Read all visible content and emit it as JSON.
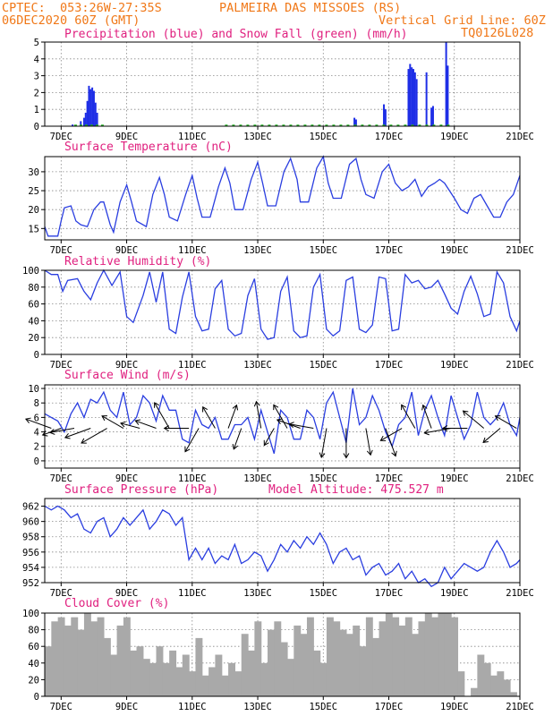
{
  "header": {
    "line1_left": "CPTEC:  053:26W-27:35S",
    "line1_right": "PALMEIRA DAS MISSOES (RS)",
    "line2_left": "06DEC2020 60Z (GMT)",
    "line2_right": "Vertical Grid Line: 60Z",
    "line3_right": "TQ0126L028"
  },
  "colors": {
    "header": "#f07818",
    "title": "#e0207f",
    "line": "#2a3ee0",
    "precip": "#1e2ee6",
    "snow": "#20b020",
    "cloud": "#a9a9a9",
    "arrow": "#000000"
  },
  "x_axis": {
    "labels": [
      "7DEC",
      "9DEC",
      "11DEC",
      "13DEC",
      "15DEC",
      "17DEC",
      "19DEC",
      "21DEC"
    ],
    "days": [
      7,
      9,
      11,
      13,
      15,
      17,
      19,
      21
    ],
    "start_day": 6.5,
    "end_day": 21
  },
  "chart_data": [
    {
      "type": "bar",
      "name": "precipitation",
      "title": "Precipitation (blue) and Snow Fall (green) (mm/h)",
      "ylim": [
        0,
        5
      ],
      "yticks": [
        0,
        1,
        2,
        3,
        4,
        5
      ],
      "x": [
        7.35,
        7.6,
        7.7,
        7.75,
        7.8,
        7.85,
        7.9,
        7.95,
        8.0,
        8.05,
        8.1,
        15.95,
        16.0,
        16.85,
        16.9,
        17.6,
        17.65,
        17.7,
        17.75,
        17.8,
        17.85,
        18.15,
        18.3,
        18.35,
        18.75,
        18.8
      ],
      "values": [
        0.1,
        0.3,
        0.5,
        0.8,
        1.5,
        2.4,
        2.2,
        2.3,
        2.1,
        1.4,
        0.8,
        0.5,
        0.4,
        1.3,
        1.0,
        3.4,
        3.7,
        3.5,
        3.4,
        3.2,
        2.8,
        3.2,
        1.1,
        1.2,
        5.0,
        3.6
      ],
      "snow": []
    },
    {
      "type": "line",
      "name": "temperature",
      "title": "Surface Temperature (nC)",
      "ylim": [
        12,
        34
      ],
      "yticks": [
        15,
        20,
        25,
        30
      ],
      "x": [
        6.5,
        6.6,
        6.8,
        6.9,
        7.0,
        7.1,
        7.3,
        7.45,
        7.6,
        7.8,
        8.0,
        8.2,
        8.3,
        8.5,
        8.6,
        8.8,
        9.0,
        9.15,
        9.3,
        9.6,
        9.8,
        10.0,
        10.15,
        10.3,
        10.55,
        10.8,
        11.0,
        11.15,
        11.3,
        11.55,
        11.8,
        12.0,
        12.15,
        12.3,
        12.55,
        12.8,
        13.0,
        13.15,
        13.3,
        13.55,
        13.8,
        14.0,
        14.2,
        14.3,
        14.55,
        14.8,
        15.0,
        15.15,
        15.3,
        15.55,
        15.8,
        16.0,
        16.15,
        16.3,
        16.55,
        16.8,
        17.0,
        17.2,
        17.4,
        17.6,
        17.8,
        18.0,
        18.2,
        18.4,
        18.55,
        18.7,
        19.0,
        19.2,
        19.4,
        19.6,
        19.8,
        20.0,
        20.2,
        20.4,
        20.6,
        20.8,
        21.0
      ],
      "values": [
        15.5,
        13,
        13,
        13,
        17,
        20.5,
        21,
        17,
        16,
        15.5,
        20,
        22,
        22,
        16,
        14,
        22,
        26.5,
        22,
        17,
        15.5,
        24,
        28.5,
        24,
        18,
        17,
        24,
        29,
        23,
        18,
        18,
        26,
        31,
        27,
        20,
        20,
        28,
        32.5,
        27,
        21,
        21,
        30,
        33.5,
        28,
        22,
        22,
        31,
        34,
        27,
        23,
        23,
        32,
        33.5,
        28,
        24,
        23,
        30,
        32,
        27,
        25,
        26,
        28,
        23.5,
        26,
        27,
        28,
        27,
        23,
        20,
        19,
        23,
        24,
        21,
        18,
        18,
        22,
        24,
        29
      ]
    },
    {
      "type": "line",
      "name": "humidity",
      "title": "Relative Humidity (%)",
      "ylim": [
        0,
        100
      ],
      "yticks": [
        0,
        20,
        40,
        60,
        80,
        100
      ],
      "x": [
        6.5,
        6.7,
        6.9,
        7.05,
        7.2,
        7.5,
        7.7,
        7.9,
        8.1,
        8.3,
        8.55,
        8.8,
        9.0,
        9.2,
        9.5,
        9.7,
        9.9,
        10.1,
        10.3,
        10.5,
        10.7,
        10.9,
        11.1,
        11.3,
        11.5,
        11.7,
        11.9,
        12.1,
        12.3,
        12.5,
        12.7,
        12.9,
        13.1,
        13.3,
        13.5,
        13.7,
        13.9,
        14.1,
        14.3,
        14.5,
        14.7,
        14.9,
        15.1,
        15.3,
        15.5,
        15.7,
        15.9,
        16.1,
        16.3,
        16.5,
        16.7,
        16.9,
        17.1,
        17.3,
        17.5,
        17.7,
        17.9,
        18.1,
        18.3,
        18.5,
        18.7,
        18.9,
        19.1,
        19.3,
        19.5,
        19.7,
        19.9,
        20.1,
        20.3,
        20.5,
        20.7,
        20.9,
        21.0
      ],
      "values": [
        100,
        95,
        95,
        75,
        88,
        90,
        75,
        65,
        85,
        100,
        82,
        98,
        45,
        38,
        70,
        98,
        62,
        98,
        30,
        25,
        68,
        98,
        45,
        28,
        30,
        78,
        88,
        30,
        22,
        25,
        70,
        90,
        30,
        18,
        20,
        75,
        92,
        28,
        20,
        22,
        80,
        95,
        30,
        22,
        28,
        88,
        92,
        30,
        26,
        35,
        92,
        90,
        28,
        30,
        95,
        85,
        88,
        78,
        80,
        88,
        72,
        55,
        48,
        75,
        93,
        72,
        45,
        48,
        98,
        85,
        45,
        28,
        40
      ]
    },
    {
      "type": "line",
      "name": "wind_speed",
      "title": "Surface Wind (m/s)",
      "ylim": [
        -1,
        10.5
      ],
      "yticks": [
        0,
        2,
        4,
        6,
        8,
        10
      ],
      "x": [
        6.5,
        6.7,
        6.9,
        7.1,
        7.3,
        7.5,
        7.7,
        7.9,
        8.1,
        8.3,
        8.5,
        8.7,
        8.9,
        9.1,
        9.3,
        9.5,
        9.7,
        9.9,
        10.1,
        10.3,
        10.5,
        10.7,
        10.9,
        11.1,
        11.3,
        11.5,
        11.7,
        11.9,
        12.1,
        12.3,
        12.5,
        12.7,
        12.9,
        13.1,
        13.3,
        13.5,
        13.7,
        13.9,
        14.1,
        14.3,
        14.5,
        14.7,
        14.9,
        15.1,
        15.3,
        15.5,
        15.7,
        15.9,
        16.1,
        16.3,
        16.5,
        16.7,
        16.9,
        17.1,
        17.3,
        17.5,
        17.7,
        17.9,
        18.1,
        18.3,
        18.5,
        18.7,
        18.9,
        19.1,
        19.3,
        19.5,
        19.7,
        19.9,
        20.1,
        20.3,
        20.5,
        20.7,
        20.9,
        21.0
      ],
      "values": [
        6.5,
        6,
        5.5,
        4,
        6.5,
        8,
        6,
        8.5,
        8,
        9.5,
        7,
        6,
        9.5,
        5,
        6,
        9,
        8,
        5.5,
        9,
        7,
        7,
        3,
        2.5,
        7,
        5,
        4.5,
        6,
        3,
        3,
        5,
        5,
        6,
        3,
        7,
        4,
        1,
        7,
        6,
        3,
        3,
        7,
        6,
        3,
        8,
        9.5,
        6,
        2.5,
        10,
        5,
        6,
        9,
        7,
        4,
        2,
        5,
        6,
        9.5,
        3.5,
        7,
        9,
        6,
        3.5,
        9,
        6,
        3,
        5,
        9.5,
        6,
        5,
        6,
        8,
        5,
        3.5,
        6
      ],
      "arrows": [
        {
          "day": 6.7,
          "speed": 5.5,
          "dir_deg": 290
        },
        {
          "day": 7.0,
          "speed": 4.0,
          "dir_deg": 250
        },
        {
          "day": 7.4,
          "speed": 5.0,
          "dir_deg": 260
        },
        {
          "day": 7.9,
          "speed": 5.5,
          "dir_deg": 250
        },
        {
          "day": 8.4,
          "speed": 6.0,
          "dir_deg": 240
        },
        {
          "day": 8.9,
          "speed": 5.0,
          "dir_deg": 300
        },
        {
          "day": 9.4,
          "speed": 4.0,
          "dir_deg": 285
        },
        {
          "day": 9.9,
          "speed": 4.5,
          "dir_deg": 290
        },
        {
          "day": 10.3,
          "speed": 6.0,
          "dir_deg": 330
        },
        {
          "day": 10.9,
          "speed": 5.0,
          "dir_deg": 270
        },
        {
          "day": 11.2,
          "speed": 5.5,
          "dir_deg": 210
        },
        {
          "day": 11.7,
          "speed": 5.0,
          "dir_deg": 330
        },
        {
          "day": 12.1,
          "speed": 5.0,
          "dir_deg": 20
        },
        {
          "day": 12.5,
          "speed": 4.5,
          "dir_deg": 200
        },
        {
          "day": 13.1,
          "speed": 5.5,
          "dir_deg": 350
        },
        {
          "day": 13.5,
          "speed": 4.0,
          "dir_deg": 210
        },
        {
          "day": 13.9,
          "speed": 5.5,
          "dir_deg": 330
        },
        {
          "day": 14.3,
          "speed": 5.0,
          "dir_deg": 290
        },
        {
          "day": 14.7,
          "speed": 5.0,
          "dir_deg": 280
        },
        {
          "day": 15.1,
          "speed": 6.0,
          "dir_deg": 190
        },
        {
          "day": 15.7,
          "speed": 6.0,
          "dir_deg": 180
        },
        {
          "day": 16.3,
          "speed": 5.5,
          "dir_deg": 170
        },
        {
          "day": 16.9,
          "speed": 6.0,
          "dir_deg": 160
        },
        {
          "day": 17.4,
          "speed": 5.0,
          "dir_deg": 240
        },
        {
          "day": 17.8,
          "speed": 5.5,
          "dir_deg": 330
        },
        {
          "day": 18.3,
          "speed": 5.0,
          "dir_deg": 340
        },
        {
          "day": 18.9,
          "speed": 5.5,
          "dir_deg": 260
        },
        {
          "day": 19.4,
          "speed": 5.0,
          "dir_deg": 270
        },
        {
          "day": 19.9,
          "speed": 5.5,
          "dir_deg": 310
        },
        {
          "day": 20.4,
          "speed": 4.5,
          "dir_deg": 230
        },
        {
          "day": 20.9,
          "speed": 5.0,
          "dir_deg": 300
        }
      ]
    },
    {
      "type": "line",
      "name": "pressure",
      "title": "Surface Pressure (hPa)",
      "subtitle": "Model Altitude: 475.527 m",
      "ylim": [
        952,
        963
      ],
      "yticks": [
        952,
        954,
        956,
        958,
        960,
        962
      ],
      "x": [
        6.5,
        6.7,
        6.9,
        7.1,
        7.3,
        7.5,
        7.7,
        7.9,
        8.1,
        8.3,
        8.5,
        8.7,
        8.9,
        9.1,
        9.3,
        9.5,
        9.7,
        9.9,
        10.1,
        10.3,
        10.5,
        10.7,
        10.9,
        11.1,
        11.3,
        11.5,
        11.7,
        11.9,
        12.1,
        12.3,
        12.5,
        12.7,
        12.9,
        13.1,
        13.3,
        13.5,
        13.7,
        13.9,
        14.1,
        14.3,
        14.5,
        14.7,
        14.9,
        15.1,
        15.3,
        15.5,
        15.7,
        15.9,
        16.1,
        16.3,
        16.5,
        16.7,
        16.9,
        17.1,
        17.3,
        17.5,
        17.7,
        17.9,
        18.1,
        18.3,
        18.5,
        18.7,
        18.9,
        19.1,
        19.3,
        19.5,
        19.7,
        19.9,
        20.1,
        20.3,
        20.5,
        20.7,
        20.9,
        21.0
      ],
      "values": [
        962,
        961.5,
        962,
        961.5,
        960.5,
        961,
        959,
        958.5,
        960,
        960.5,
        958,
        959,
        960.5,
        959.5,
        960.5,
        961.5,
        959,
        960,
        961.5,
        961,
        959.5,
        960.5,
        955,
        956.5,
        955,
        956.5,
        954.5,
        955.5,
        955,
        957,
        954.5,
        955,
        956,
        955.5,
        953.5,
        955,
        957,
        956,
        957.5,
        956.5,
        958,
        957,
        958.5,
        957,
        954.5,
        956,
        956.5,
        955,
        955.5,
        953,
        954,
        954.5,
        953,
        953.5,
        954.5,
        952.5,
        953.5,
        952,
        952.5,
        951.5,
        952,
        954,
        952.5,
        953.5,
        954.5,
        954,
        953.5,
        954,
        956,
        957.5,
        956,
        954,
        954.5,
        955
      ]
    },
    {
      "type": "bar",
      "name": "cloud_cover",
      "title": "Cloud Cover (%)",
      "ylim": [
        0,
        100
      ],
      "yticks": [
        0,
        20,
        40,
        60,
        80,
        100
      ],
      "x": [
        6.5,
        6.7,
        6.9,
        7.1,
        7.3,
        7.5,
        7.7,
        7.9,
        8.1,
        8.3,
        8.5,
        8.7,
        8.9,
        9.1,
        9.3,
        9.5,
        9.7,
        9.9,
        10.1,
        10.3,
        10.5,
        10.7,
        10.9,
        11.1,
        11.3,
        11.5,
        11.7,
        11.9,
        12.1,
        12.3,
        12.5,
        12.7,
        12.9,
        13.1,
        13.3,
        13.5,
        13.7,
        13.9,
        14.1,
        14.3,
        14.5,
        14.7,
        14.9,
        15.1,
        15.3,
        15.5,
        15.7,
        15.9,
        16.1,
        16.3,
        16.5,
        16.7,
        16.9,
        17.1,
        17.3,
        17.5,
        17.7,
        17.9,
        18.1,
        18.3,
        18.5,
        18.7,
        18.9,
        19.1,
        19.3,
        19.5,
        19.7,
        19.9,
        20.1,
        20.3,
        20.5,
        20.7,
        20.9
      ],
      "values": [
        60,
        90,
        95,
        85,
        95,
        80,
        100,
        90,
        95,
        70,
        50,
        85,
        95,
        55,
        60,
        45,
        40,
        60,
        40,
        55,
        35,
        50,
        30,
        70,
        25,
        35,
        50,
        25,
        40,
        30,
        75,
        55,
        90,
        40,
        80,
        90,
        65,
        45,
        85,
        75,
        95,
        55,
        40,
        95,
        90,
        80,
        75,
        85,
        60,
        95,
        70,
        90,
        100,
        95,
        85,
        95,
        75,
        90,
        100,
        95,
        100,
        100,
        95,
        30,
        0,
        10,
        50,
        40,
        25,
        30,
        20,
        5,
        0
      ]
    }
  ]
}
